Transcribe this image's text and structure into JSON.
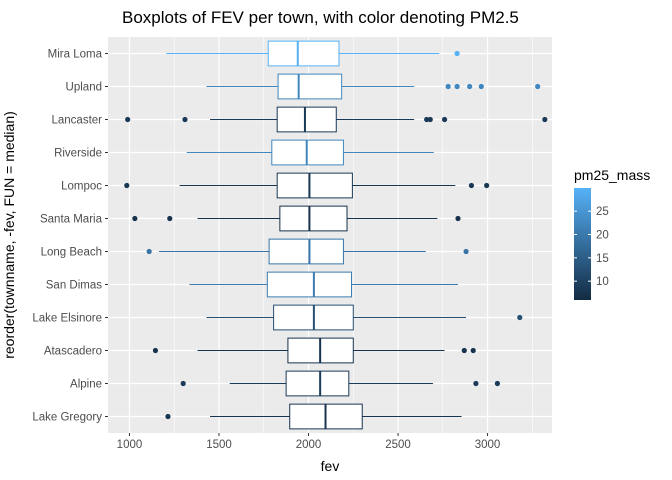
{
  "chart_data": {
    "type": "boxplot",
    "title": "Boxplots of FEV per town, with color denoting PM2.5",
    "xlabel": "fev",
    "ylabel": "reorder(townname, -fev, FUN = median)",
    "xlim": [
      880,
      3360
    ],
    "x_ticks": [
      1000,
      1500,
      2000,
      2500,
      3000
    ],
    "grid": true,
    "legend": {
      "title": "pm25_mass",
      "position": "right",
      "ticks": [
        10,
        15,
        20,
        25
      ],
      "range": [
        5.96,
        29.97
      ],
      "color_low": "#132B43",
      "color_high": "#56B1F7"
    },
    "series": [
      {
        "name": "Mira Loma",
        "pm25": 29.97,
        "min": 1205,
        "q1": 1775,
        "median": 1940,
        "q3": 2170,
        "max": 2730,
        "outliers": [
          2830
        ]
      },
      {
        "name": "Upland",
        "pm25": 22.46,
        "min": 1430,
        "q1": 1830,
        "median": 1945,
        "q3": 2185,
        "max": 2590,
        "outliers": [
          2780,
          2830,
          2900,
          2965,
          3280
        ]
      },
      {
        "name": "Lancaster",
        "pm25": 8.5,
        "min": 1450,
        "q1": 1825,
        "median": 1980,
        "q3": 2155,
        "max": 2590,
        "outliers": [
          990,
          1310,
          2660,
          2680,
          2760,
          3320
        ]
      },
      {
        "name": "Riverside",
        "pm25": 22.39,
        "min": 1320,
        "q1": 1795,
        "median": 1990,
        "q3": 2195,
        "max": 2700,
        "outliers": []
      },
      {
        "name": "Lompoc",
        "pm25": 8.22,
        "min": 1280,
        "q1": 1825,
        "median": 2005,
        "q3": 2245,
        "max": 2820,
        "outliers": [
          985,
          2910,
          2995
        ]
      },
      {
        "name": "Santa Maria",
        "pm25": 7.19,
        "min": 1380,
        "q1": 1840,
        "median": 2005,
        "q3": 2215,
        "max": 2720,
        "outliers": [
          1030,
          1225,
          2835
        ]
      },
      {
        "name": "Long Beach",
        "pm25": 19.12,
        "min": 1165,
        "q1": 1780,
        "median": 2005,
        "q3": 2195,
        "max": 2655,
        "outliers": [
          1110,
          2880
        ]
      },
      {
        "name": "San Dimas",
        "pm25": 20.52,
        "min": 1335,
        "q1": 1770,
        "median": 2030,
        "q3": 2240,
        "max": 2835,
        "outliers": []
      },
      {
        "name": "Lake Elsinore",
        "pm25": 12.35,
        "min": 1430,
        "q1": 1805,
        "median": 2030,
        "q3": 2250,
        "max": 2880,
        "outliers": [
          3180
        ]
      },
      {
        "name": "Atascadero",
        "pm25": 7.48,
        "min": 1380,
        "q1": 1885,
        "median": 2065,
        "q3": 2250,
        "max": 2760,
        "outliers": [
          1145,
          2870,
          2920
        ]
      },
      {
        "name": "Alpine",
        "pm25": 8.74,
        "min": 1560,
        "q1": 1875,
        "median": 2065,
        "q3": 2225,
        "max": 2695,
        "outliers": [
          1300,
          2935,
          3055
        ]
      },
      {
        "name": "Lake Gregory",
        "pm25": 7.66,
        "min": 1450,
        "q1": 1895,
        "median": 2095,
        "q3": 2300,
        "max": 2855,
        "outliers": [
          1215
        ]
      }
    ]
  }
}
